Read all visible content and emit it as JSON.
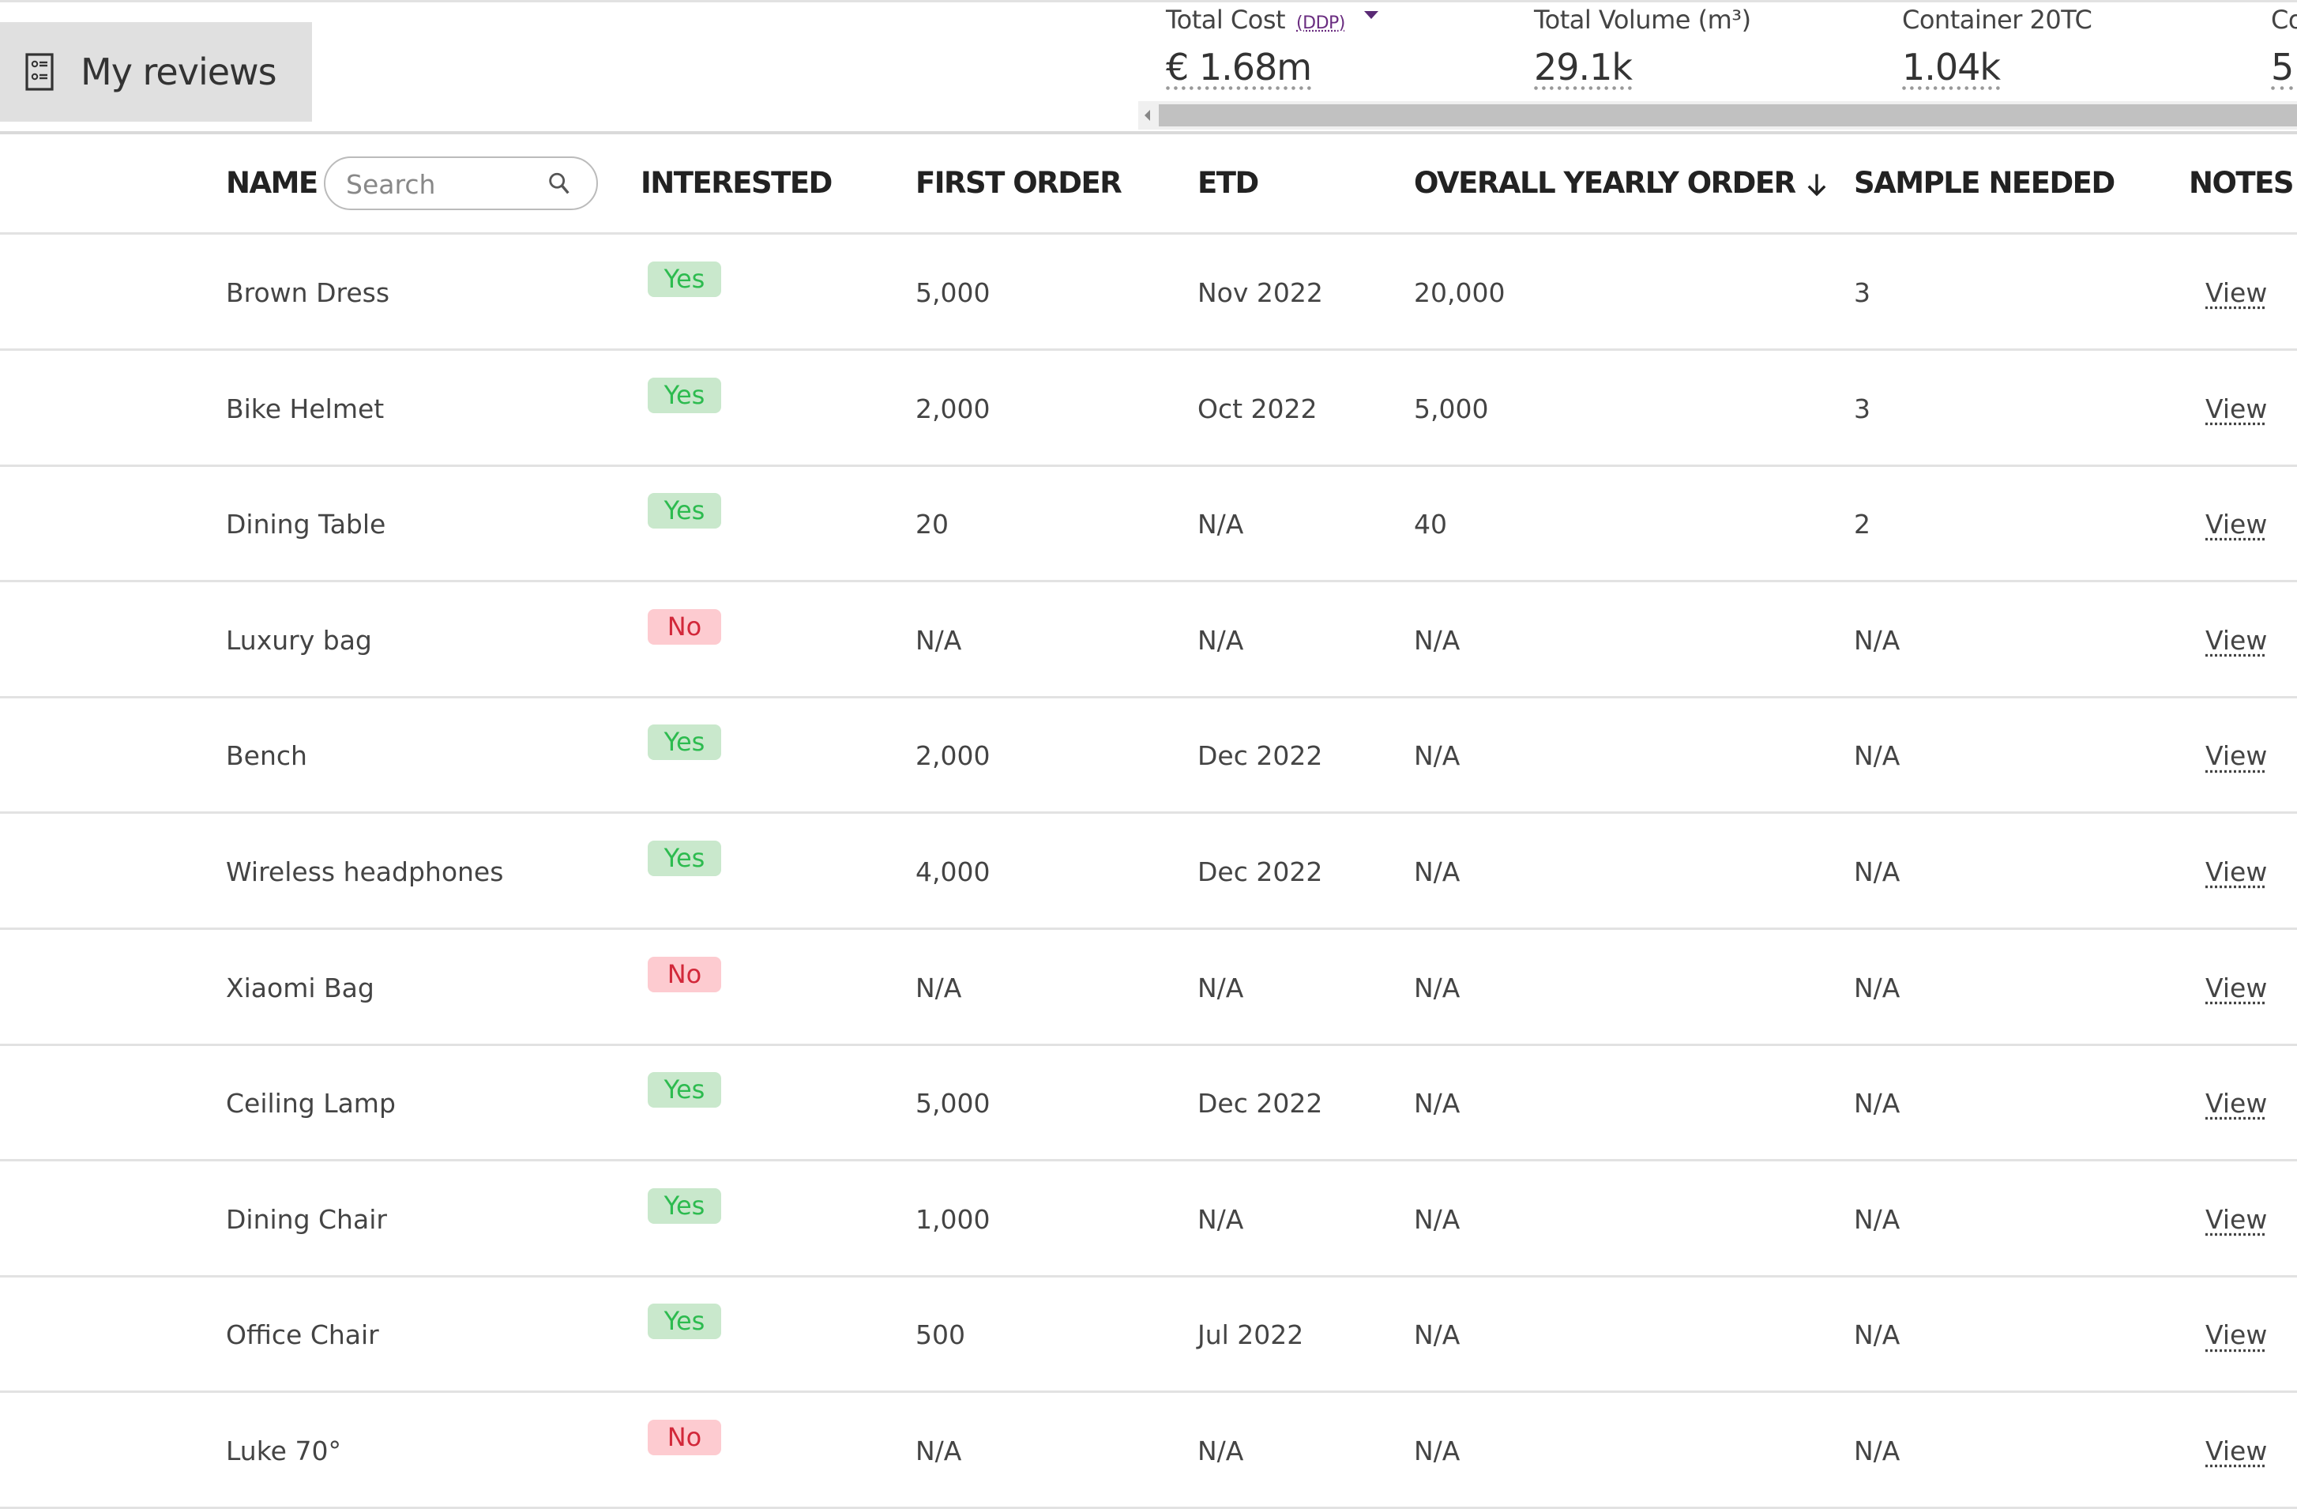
{
  "header": {
    "title": "My reviews",
    "title_icon": "list-checks-icon"
  },
  "kpis": [
    {
      "label": "Total Cost",
      "sub": "(DDP)",
      "value": "€ 1.68m",
      "has_dropdown": true
    },
    {
      "label": "Total Volume (m³)",
      "value": "29.1k"
    },
    {
      "label": "Container 20TC",
      "value": "1.04k"
    },
    {
      "label": "Co",
      "value": "5"
    }
  ],
  "table": {
    "columns": {
      "name": "NAME",
      "interested": "INTERESTED",
      "first_order": "FIRST ORDER",
      "etd": "ETD",
      "overall_yearly_order": "OVERALL YEARLY ORDER",
      "sample_needed": "SAMPLE NEEDED",
      "notes": "NOTES"
    },
    "sort_icon": "arrow-down-icon",
    "search_placeholder": "Search",
    "search_value": "",
    "rows": [
      {
        "name": "Brown Dress",
        "interested": "Yes",
        "first_order": "5,000",
        "etd": "Nov 2022",
        "yearly": "20,000",
        "sample": "3",
        "notes": "View"
      },
      {
        "name": "Bike Helmet",
        "interested": "Yes",
        "first_order": "2,000",
        "etd": "Oct 2022",
        "yearly": "5,000",
        "sample": "3",
        "notes": "View"
      },
      {
        "name": "Dining Table",
        "interested": "Yes",
        "first_order": "20",
        "etd": "N/A",
        "yearly": "40",
        "sample": "2",
        "notes": "View"
      },
      {
        "name": "Luxury bag",
        "interested": "No",
        "first_order": "N/A",
        "etd": "N/A",
        "yearly": "N/A",
        "sample": "N/A",
        "notes": "View"
      },
      {
        "name": "Bench",
        "interested": "Yes",
        "first_order": "2,000",
        "etd": "Dec 2022",
        "yearly": "N/A",
        "sample": "N/A",
        "notes": "View"
      },
      {
        "name": "Wireless headphones",
        "interested": "Yes",
        "first_order": "4,000",
        "etd": "Dec 2022",
        "yearly": "N/A",
        "sample": "N/A",
        "notes": "View"
      },
      {
        "name": "Xiaomi Bag",
        "interested": "No",
        "first_order": "N/A",
        "etd": "N/A",
        "yearly": "N/A",
        "sample": "N/A",
        "notes": "View"
      },
      {
        "name": "Ceiling Lamp",
        "interested": "Yes",
        "first_order": "5,000",
        "etd": "Dec 2022",
        "yearly": "N/A",
        "sample": "N/A",
        "notes": "View"
      },
      {
        "name": "Dining Chair",
        "interested": "Yes",
        "first_order": "1,000",
        "etd": "N/A",
        "yearly": "N/A",
        "sample": "N/A",
        "notes": "View"
      },
      {
        "name": "Office Chair",
        "interested": "Yes",
        "first_order": "500",
        "etd": "Jul 2022",
        "yearly": "N/A",
        "sample": "N/A",
        "notes": "View"
      },
      {
        "name": "Luke 70°",
        "interested": "No",
        "first_order": "N/A",
        "etd": "N/A",
        "yearly": "N/A",
        "sample": "N/A",
        "notes": "View"
      }
    ]
  },
  "colors": {
    "yes_bg": "#c9e8cc",
    "yes_text": "#2dbb4f",
    "no_bg": "#fdcbd0",
    "no_text": "#d2283a",
    "accent": "#5a2a75"
  }
}
